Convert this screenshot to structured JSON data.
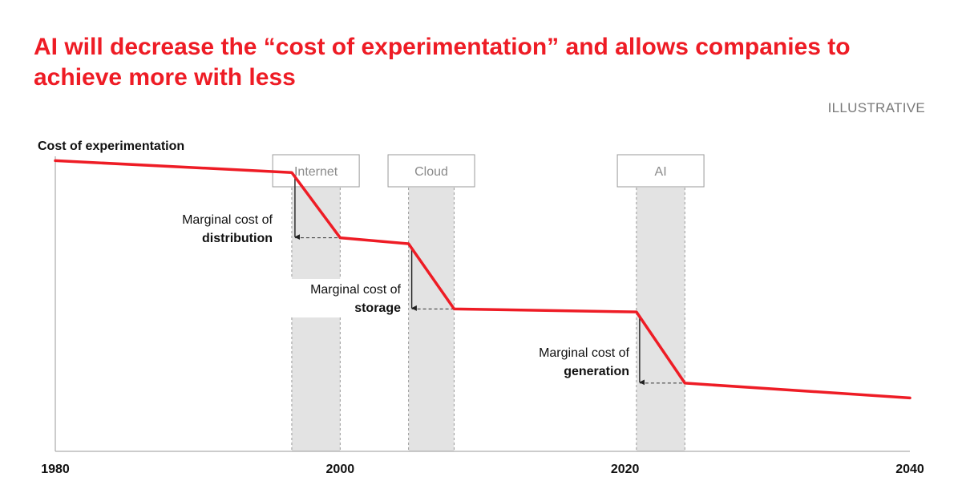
{
  "title_line1": "AI will decrease the “cost of experimentation” and allows companies to",
  "title_line2": "achieve more with less",
  "tag": "ILLUSTRATIVE",
  "colors": {
    "accent": "#ee1c25",
    "band": "#e3e3e3",
    "axis": "#9a9a9a",
    "text": "#111111",
    "muted": "#8a8a8a"
  },
  "chart_data": {
    "type": "line",
    "ylabel": "Cost of experimentation",
    "xlabel": "",
    "xlim": [
      1980,
      2040
    ],
    "ylim": [
      0,
      100
    ],
    "x_ticks": [
      "1980",
      "2000",
      "2020",
      "2040"
    ],
    "series": [
      {
        "name": "Cost of experimentation",
        "points": [
          {
            "x": 1980,
            "y": 98
          },
          {
            "x": 1996.6,
            "y": 94
          },
          {
            "x": 2000,
            "y": 72
          },
          {
            "x": 2004.8,
            "y": 70
          },
          {
            "x": 2008,
            "y": 48
          },
          {
            "x": 2020.8,
            "y": 47
          },
          {
            "x": 2024.2,
            "y": 23
          },
          {
            "x": 2040,
            "y": 18
          }
        ]
      }
    ],
    "eras": [
      {
        "label": "Internet",
        "start": 1996.6,
        "end": 2000
      },
      {
        "label": "Cloud",
        "start": 2004.8,
        "end": 2008
      },
      {
        "label": "AI",
        "start": 2020.8,
        "end": 2024.2
      }
    ],
    "annotations": [
      {
        "line1": "Marginal cost of",
        "line2": "distribution",
        "from_y": 94,
        "to_y": 72,
        "at_x": 1996.6
      },
      {
        "line1": "Marginal cost of",
        "line2": "storage",
        "from_y": 70,
        "to_y": 48,
        "at_x": 2004.8
      },
      {
        "line1": "Marginal cost of",
        "line2": "generation",
        "from_y": 47,
        "to_y": 23,
        "at_x": 2020.8
      }
    ]
  }
}
